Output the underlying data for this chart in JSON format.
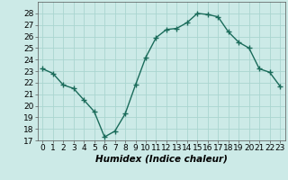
{
  "x": [
    0,
    1,
    2,
    3,
    4,
    5,
    6,
    7,
    8,
    9,
    10,
    11,
    12,
    13,
    14,
    15,
    16,
    17,
    18,
    19,
    20,
    21,
    22,
    23
  ],
  "y": [
    23.2,
    22.8,
    21.8,
    21.5,
    20.5,
    19.5,
    17.3,
    17.8,
    19.3,
    21.8,
    24.2,
    25.9,
    26.6,
    26.7,
    27.2,
    28.0,
    27.9,
    27.7,
    26.4,
    25.5,
    25.0,
    23.2,
    22.9,
    21.7
  ],
  "line_color": "#1a6b5a",
  "marker": "+",
  "marker_size": 4,
  "marker_linewidth": 1.0,
  "background_color": "#cceae7",
  "grid_color": "#aad5d0",
  "xlabel": "Humidex (Indice chaleur)",
  "xlabel_style": "italic",
  "xlabel_fontsize": 7.5,
  "xlabel_weight": "bold",
  "ylim": [
    17,
    29
  ],
  "xlim": [
    -0.5,
    23.5
  ],
  "yticks": [
    17,
    18,
    19,
    20,
    21,
    22,
    23,
    24,
    25,
    26,
    27,
    28
  ],
  "xticks": [
    0,
    1,
    2,
    3,
    4,
    5,
    6,
    7,
    8,
    9,
    10,
    11,
    12,
    13,
    14,
    15,
    16,
    17,
    18,
    19,
    20,
    21,
    22,
    23
  ],
  "tick_fontsize": 6.5,
  "linewidth": 1.0
}
